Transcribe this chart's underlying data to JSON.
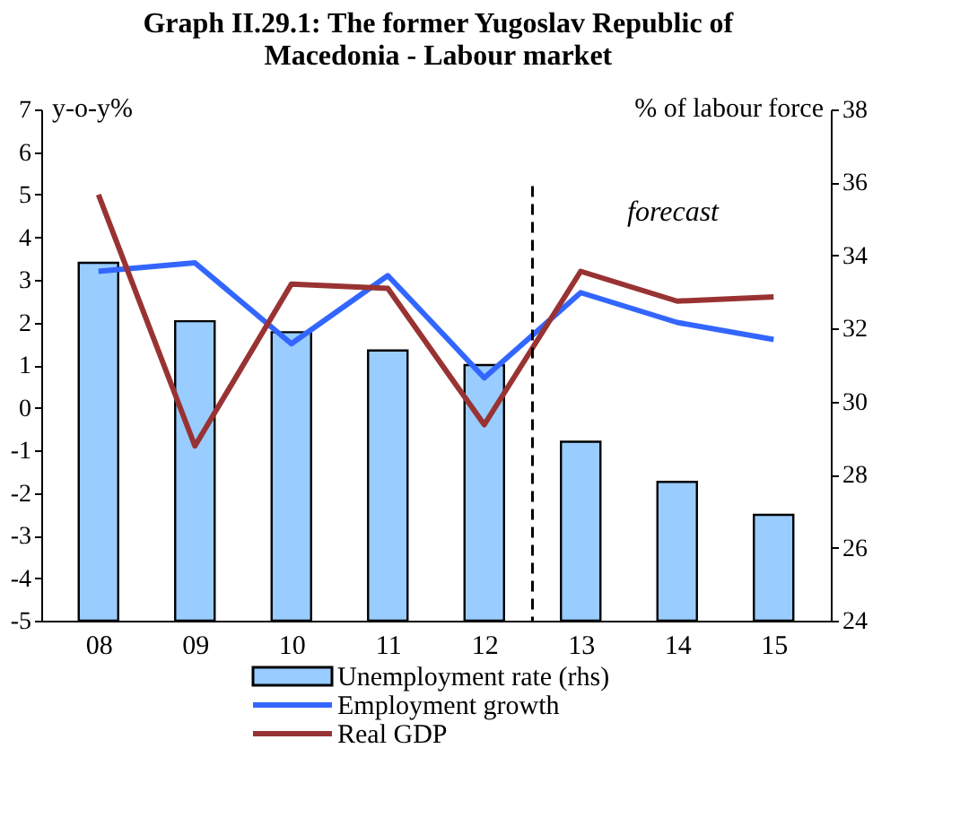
{
  "chart_data": {
    "type": "bar",
    "title": "Graph II.29.1: The former Yugoslav Republic of Macedonia - Labour market",
    "ylabel": "y-o-y%",
    "y2label": "% of labour force",
    "x": [
      2008,
      2009,
      2010,
      2011,
      2012,
      2013,
      2014,
      2015
    ],
    "xlim": [
      2007.5,
      2015.5
    ],
    "xticks": [
      {
        "value": 2008,
        "label": "08"
      },
      {
        "value": 2009,
        "label": "09"
      },
      {
        "value": 2010,
        "label": "10"
      },
      {
        "value": 2011,
        "label": "11"
      },
      {
        "value": 2012,
        "label": "12"
      },
      {
        "value": 2013,
        "label": "13"
      },
      {
        "value": 2014,
        "label": "14"
      },
      {
        "value": 2015,
        "label": "15"
      }
    ],
    "ylim": [
      -5,
      7
    ],
    "yticks": [
      -5,
      -4,
      -3,
      -2,
      -1,
      0,
      1,
      2,
      3,
      4,
      5,
      6,
      7
    ],
    "y2lim": [
      24,
      38
    ],
    "y2ticks": [
      24,
      26,
      28,
      30,
      32,
      34,
      36,
      38
    ],
    "series": [
      {
        "name": "Unemployment rate (rhs)",
        "axis": "y2",
        "color": "#99ccff",
        "values": [
          33.8,
          32.2,
          31.9,
          31.4,
          31.0,
          28.9,
          27.8,
          26.9
        ]
      },
      {
        "name": "Employment growth",
        "type": "line",
        "axis": "y",
        "color": "#3366ff",
        "values": [
          3.2,
          3.4,
          1.5,
          3.1,
          0.7,
          2.7,
          2.0,
          1.6
        ]
      },
      {
        "name": "Real GDP",
        "type": "line",
        "axis": "y",
        "color": "#993333",
        "values": [
          5.0,
          -0.9,
          2.9,
          2.8,
          -0.4,
          3.2,
          2.5,
          2.6
        ]
      }
    ],
    "ref_lines": [
      {
        "axis": "x",
        "value": 2012.5,
        "line_style": "dashed",
        "color": "#000000"
      }
    ],
    "annotations": [
      "forecast"
    ],
    "grid": false,
    "legend": "bottom",
    "line_style": "solid"
  }
}
